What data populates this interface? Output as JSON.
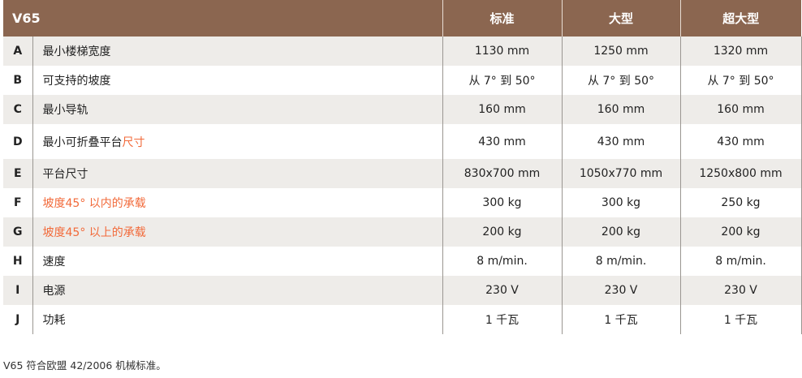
{
  "header": {
    "title": "V65",
    "columns": [
      "标准",
      "大型",
      "超大型"
    ]
  },
  "rows": [
    {
      "letter": "A",
      "label": "最小楼梯宽度",
      "label_highlight": "",
      "values": [
        "1130 mm",
        "1250 mm",
        "1320 mm"
      ]
    },
    {
      "letter": "B",
      "label": "可支持的坡度",
      "label_highlight": "",
      "values": [
        "从 7° 到 50°",
        "从 7° 到 50°",
        "从 7° 到 50°"
      ]
    },
    {
      "letter": "C",
      "label": "最小导轨",
      "label_highlight": "",
      "values": [
        "160 mm",
        "160 mm",
        "160 mm"
      ]
    },
    {
      "letter": "D",
      "label": "最小可折叠平台",
      "label_highlight": "尺寸",
      "values": [
        "430 mm",
        "430 mm",
        "430 mm"
      ]
    },
    {
      "letter": "E",
      "label": "平台尺寸",
      "label_highlight": "",
      "values": [
        "830x700 mm",
        "1050x770 mm",
        "1250x800 mm"
      ]
    },
    {
      "letter": "F",
      "label": "",
      "label_highlight": "坡度45° 以内的承载",
      "values": [
        "300 kg",
        "300 kg",
        "250 kg"
      ]
    },
    {
      "letter": "G",
      "label": "",
      "label_highlight": "坡度45° 以上的承载",
      "values": [
        "200 kg",
        "200 kg",
        "200 kg"
      ]
    },
    {
      "letter": "H",
      "label": "速度",
      "label_highlight": "",
      "values": [
        "8 m/min.",
        "8 m/min.",
        "8 m/min."
      ]
    },
    {
      "letter": "I",
      "label": "电源",
      "label_highlight": "",
      "values": [
        "230 V",
        "230 V",
        "230 V"
      ]
    },
    {
      "letter": "J",
      "label": "功耗",
      "label_highlight": "",
      "values": [
        "1 千瓦",
        "1 千瓦",
        "1 千瓦"
      ]
    }
  ],
  "footnote": "V65 符合欧盟 42/2006 机械标准。",
  "colors": {
    "header_bg": "#8b6650",
    "stripe": "#eeece9",
    "highlight": "#f26a3a"
  }
}
